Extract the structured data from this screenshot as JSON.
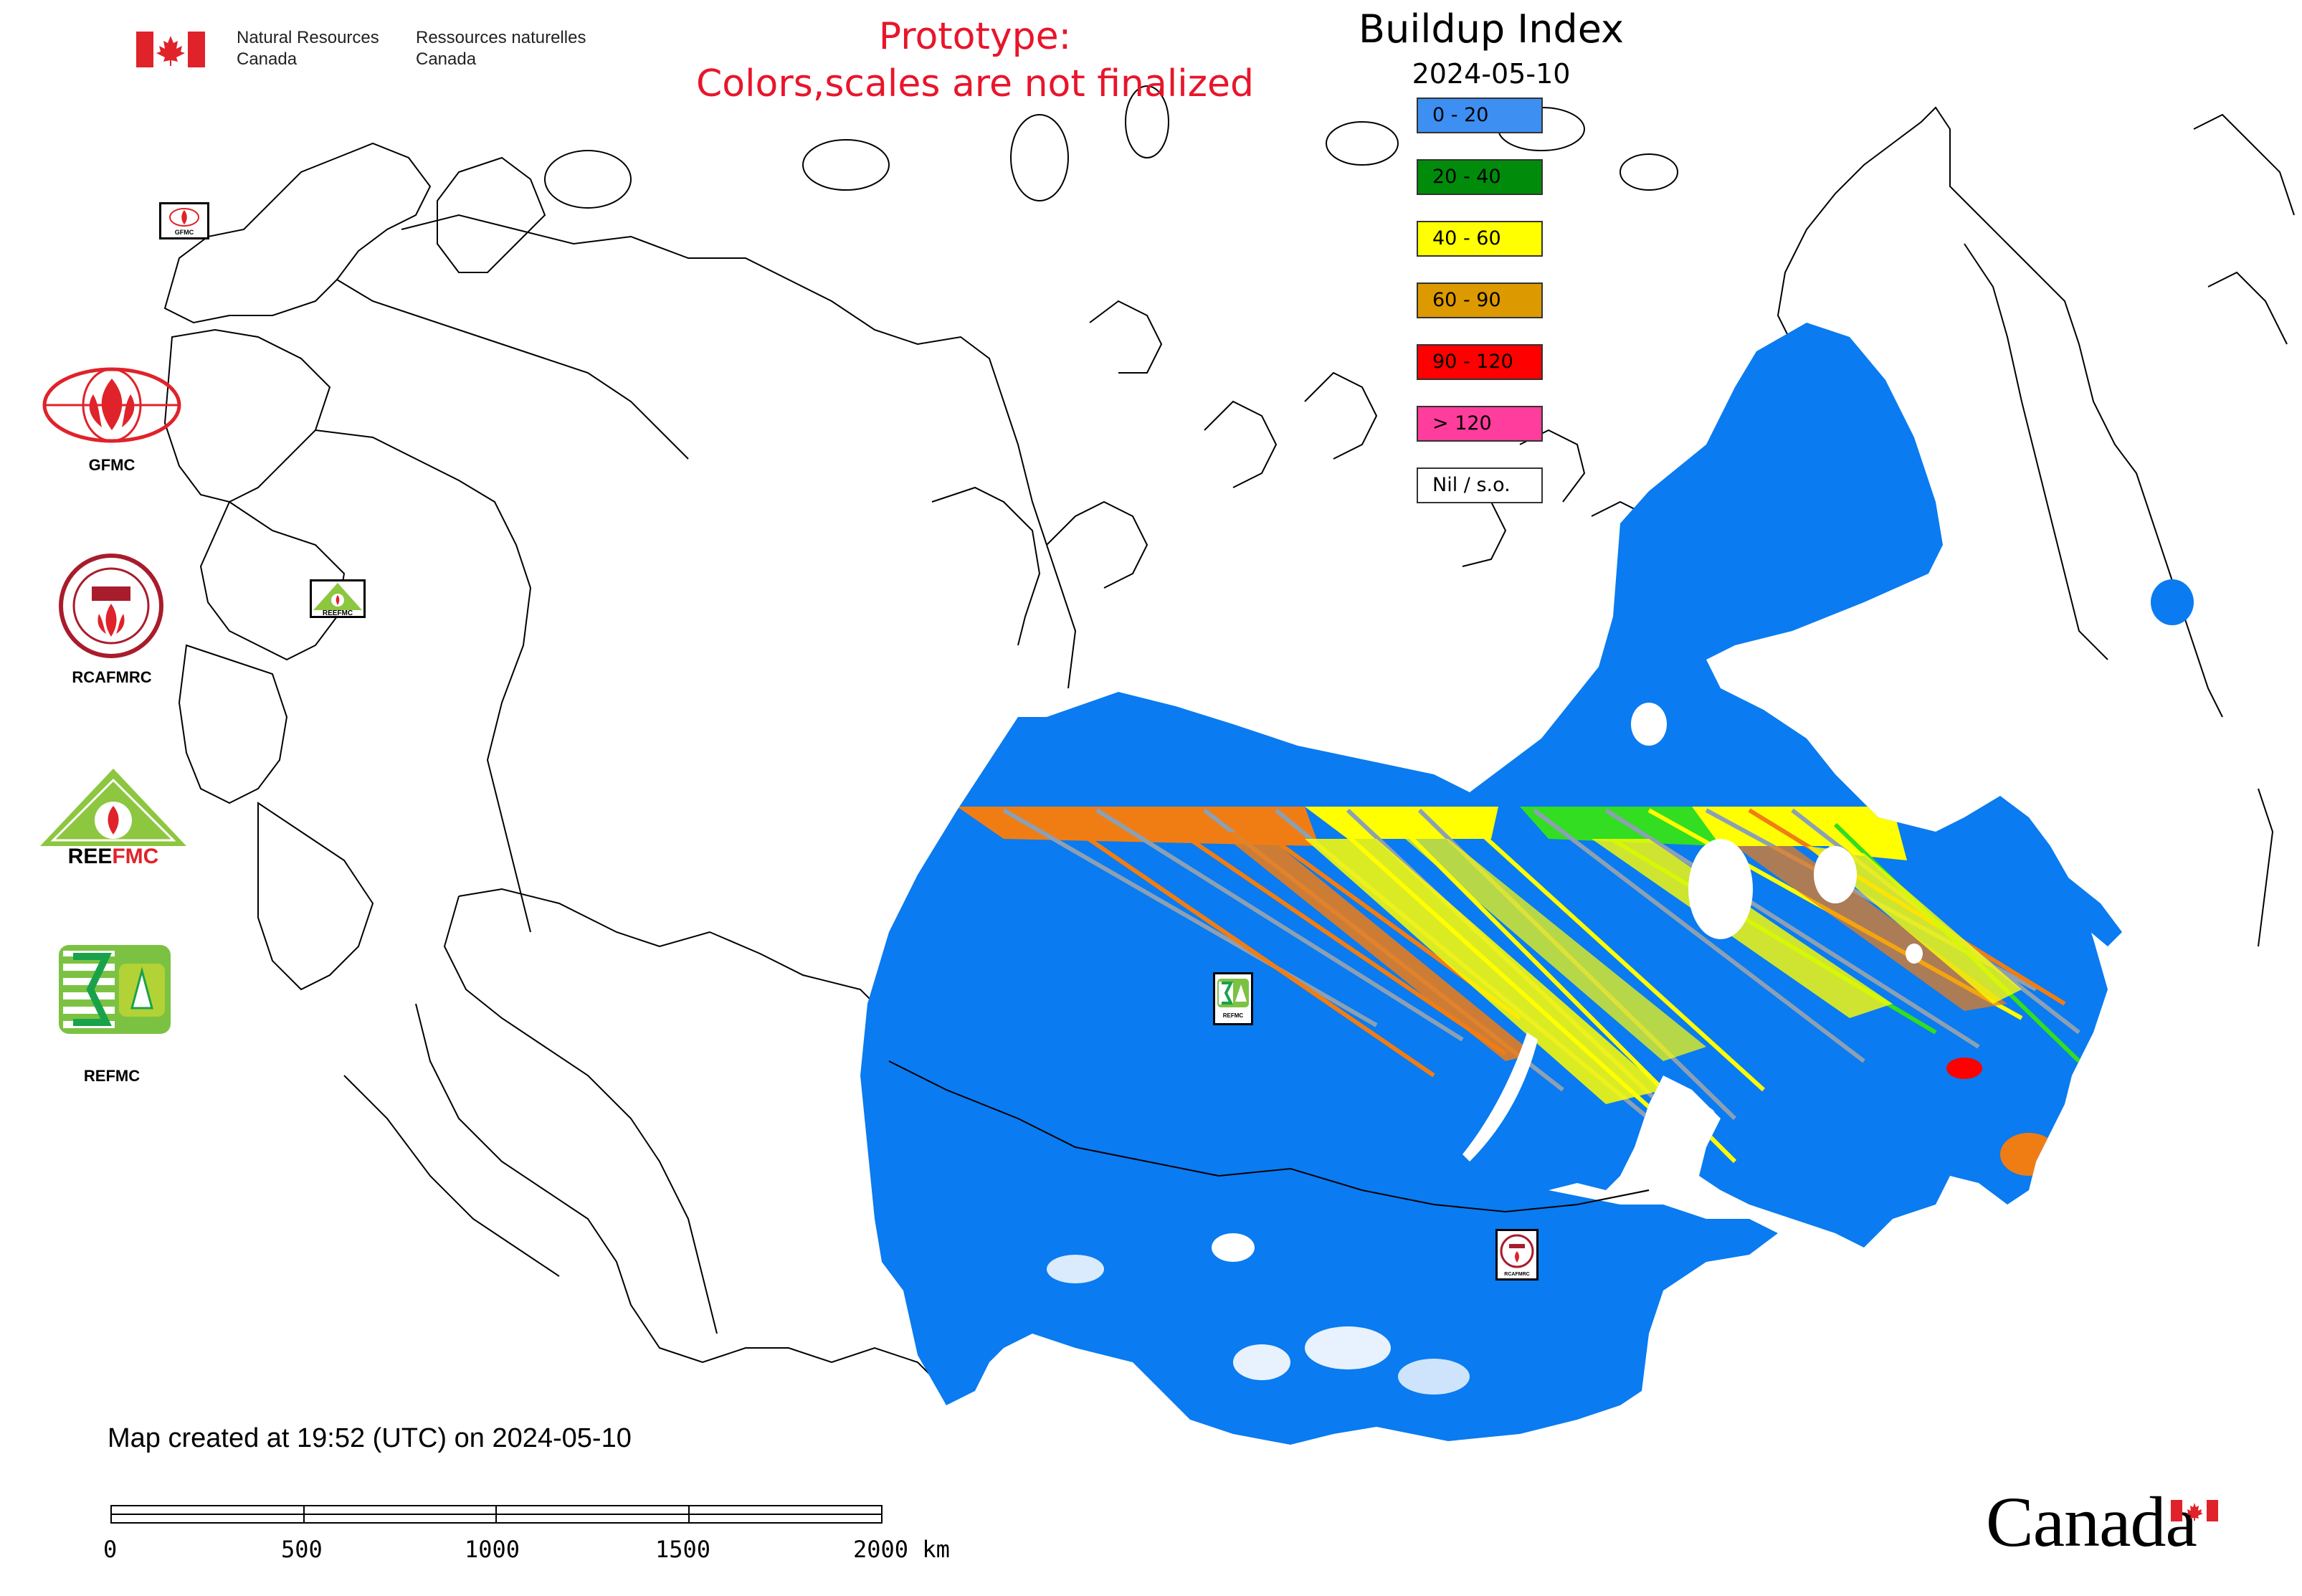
{
  "header": {
    "dept_en_line1": "Natural Resources",
    "dept_en_line2": "Canada",
    "dept_fr_line1": "Ressources naturelles",
    "dept_fr_line2": "Canada"
  },
  "prototype": {
    "line1": "Prototype:",
    "line2": "Colors,scales are not finalized"
  },
  "legend": {
    "title": "Buildup Index",
    "date": "2024-05-10",
    "classes": [
      {
        "label": "0 - 20",
        "color": "#3d8ff2"
      },
      {
        "label": "20 - 40",
        "color": "#008c0a"
      },
      {
        "label": "40 - 60",
        "color": "#ffff00"
      },
      {
        "label": "60 - 90",
        "color": "#dc9a00"
      },
      {
        "label": "90 - 120",
        "color": "#ff0000"
      },
      {
        "label": "> 120",
        "color": "#ff3d9c"
      },
      {
        "label": "Nil / s.o.",
        "color": "#ffffff"
      }
    ]
  },
  "agencies": [
    {
      "name": "GFMC",
      "icon": "gfmc-logo-icon"
    },
    {
      "name": "RCAFMRC",
      "icon": "rcafmrc-logo-icon"
    },
    {
      "name": "REEFMC",
      "icon": "reefmc-logo-icon"
    },
    {
      "name": "REFMC",
      "icon": "refmc-logo-icon"
    }
  ],
  "map_markers": [
    {
      "name": "GFMC",
      "icon": "gfmc-marker-icon"
    },
    {
      "name": "REEFMC",
      "icon": "reefmc-marker-icon"
    },
    {
      "name": "REFMC",
      "icon": "refmc-marker-icon"
    },
    {
      "name": "RCAFMRC",
      "icon": "rcafmrc-marker-icon"
    }
  ],
  "footer": {
    "created": "Map created at 19:52 (UTC) on 2024-05-10",
    "scale_labels": [
      "0",
      "500",
      "1000",
      "1500",
      "2000 km"
    ],
    "wordmark": "Canada"
  },
  "colors": {
    "dominant_blue": "#0a7bf0",
    "prototype_red": "#e8152b",
    "streak_orange": "#f07d14",
    "streak_gray": "#8ca0b4",
    "streak_green": "#33dd22"
  }
}
